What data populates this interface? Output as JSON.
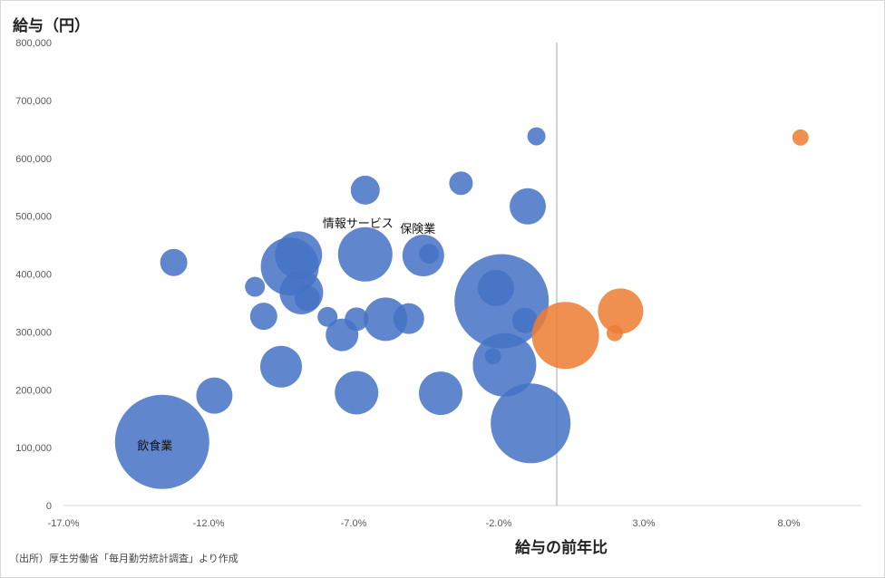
{
  "chart_data": {
    "type": "bubble",
    "ylabel": "給与（円）",
    "xlabel": "給与の前年比",
    "source": "（出所）厚生労働省「毎月勤労統計調査」より作成",
    "ylim": [
      0,
      800000
    ],
    "xlim": [
      -17.0,
      10.5
    ],
    "yticks": [
      "0",
      "100,000",
      "200,000",
      "300,000",
      "400,000",
      "500,000",
      "600,000",
      "700,000",
      "800,000"
    ],
    "yticks_values": [
      0,
      100000,
      200000,
      300000,
      400000,
      500000,
      600000,
      700000,
      800000
    ],
    "xticks": [
      "-17.0%",
      "-12.0%",
      "-7.0%",
      "-2.0%",
      "3.0%",
      "8.0%"
    ],
    "xticks_values": [
      -17,
      -12,
      -7,
      -2,
      3,
      8
    ],
    "reference_line_x": 0.0,
    "grid": false,
    "colors": {
      "negative": "#4472C4",
      "positive": "#ED7D31"
    },
    "series": [
      {
        "color": "#4472C4",
        "points": [
          {
            "x": -13.6,
            "y": 110000,
            "size": 52,
            "label": "飲食業"
          },
          {
            "x": -13.2,
            "y": 420000,
            "size": 15
          },
          {
            "x": -11.8,
            "y": 190000,
            "size": 20
          },
          {
            "x": -10.4,
            "y": 378000,
            "size": 11
          },
          {
            "x": -10.1,
            "y": 327000,
            "size": 15
          },
          {
            "x": -9.5,
            "y": 240000,
            "size": 23
          },
          {
            "x": -9.2,
            "y": 413000,
            "size": 32
          },
          {
            "x": -8.9,
            "y": 433000,
            "size": 26
          },
          {
            "x": -8.8,
            "y": 368000,
            "size": 24
          },
          {
            "x": -8.6,
            "y": 358000,
            "size": 14
          },
          {
            "x": -7.9,
            "y": 326000,
            "size": 11
          },
          {
            "x": -7.4,
            "y": 295000,
            "size": 18
          },
          {
            "x": -6.9,
            "y": 322000,
            "size": 13
          },
          {
            "x": -6.9,
            "y": 195000,
            "size": 24
          },
          {
            "x": -6.6,
            "y": 545000,
            "size": 16
          },
          {
            "x": -6.6,
            "y": 434000,
            "size": 30,
            "label": "情報サービス"
          },
          {
            "x": -5.9,
            "y": 322000,
            "size": 24
          },
          {
            "x": -5.1,
            "y": 323000,
            "size": 17
          },
          {
            "x": -4.6,
            "y": 432000,
            "size": 23,
            "label": "保険業"
          },
          {
            "x": -4.4,
            "y": 435000,
            "size": 11
          },
          {
            "x": -4.0,
            "y": 194000,
            "size": 24
          },
          {
            "x": -3.3,
            "y": 557000,
            "size": 13
          },
          {
            "x": -2.2,
            "y": 258000,
            "size": 9
          },
          {
            "x": -1.9,
            "y": 353000,
            "size": 52
          },
          {
            "x": -2.1,
            "y": 376000,
            "size": 20
          },
          {
            "x": -1.8,
            "y": 243000,
            "size": 35
          },
          {
            "x": -1.0,
            "y": 517000,
            "size": 20
          },
          {
            "x": -1.1,
            "y": 320000,
            "size": 14
          },
          {
            "x": -0.9,
            "y": 142000,
            "size": 44
          },
          {
            "x": -0.7,
            "y": 638000,
            "size": 10
          }
        ]
      },
      {
        "color": "#ED7D31",
        "points": [
          {
            "x": 0.3,
            "y": 294000,
            "size": 37
          },
          {
            "x": 2.0,
            "y": 298000,
            "size": 9
          },
          {
            "x": 2.2,
            "y": 336000,
            "size": 25
          },
          {
            "x": 8.4,
            "y": 636000,
            "size": 9
          }
        ]
      }
    ]
  }
}
